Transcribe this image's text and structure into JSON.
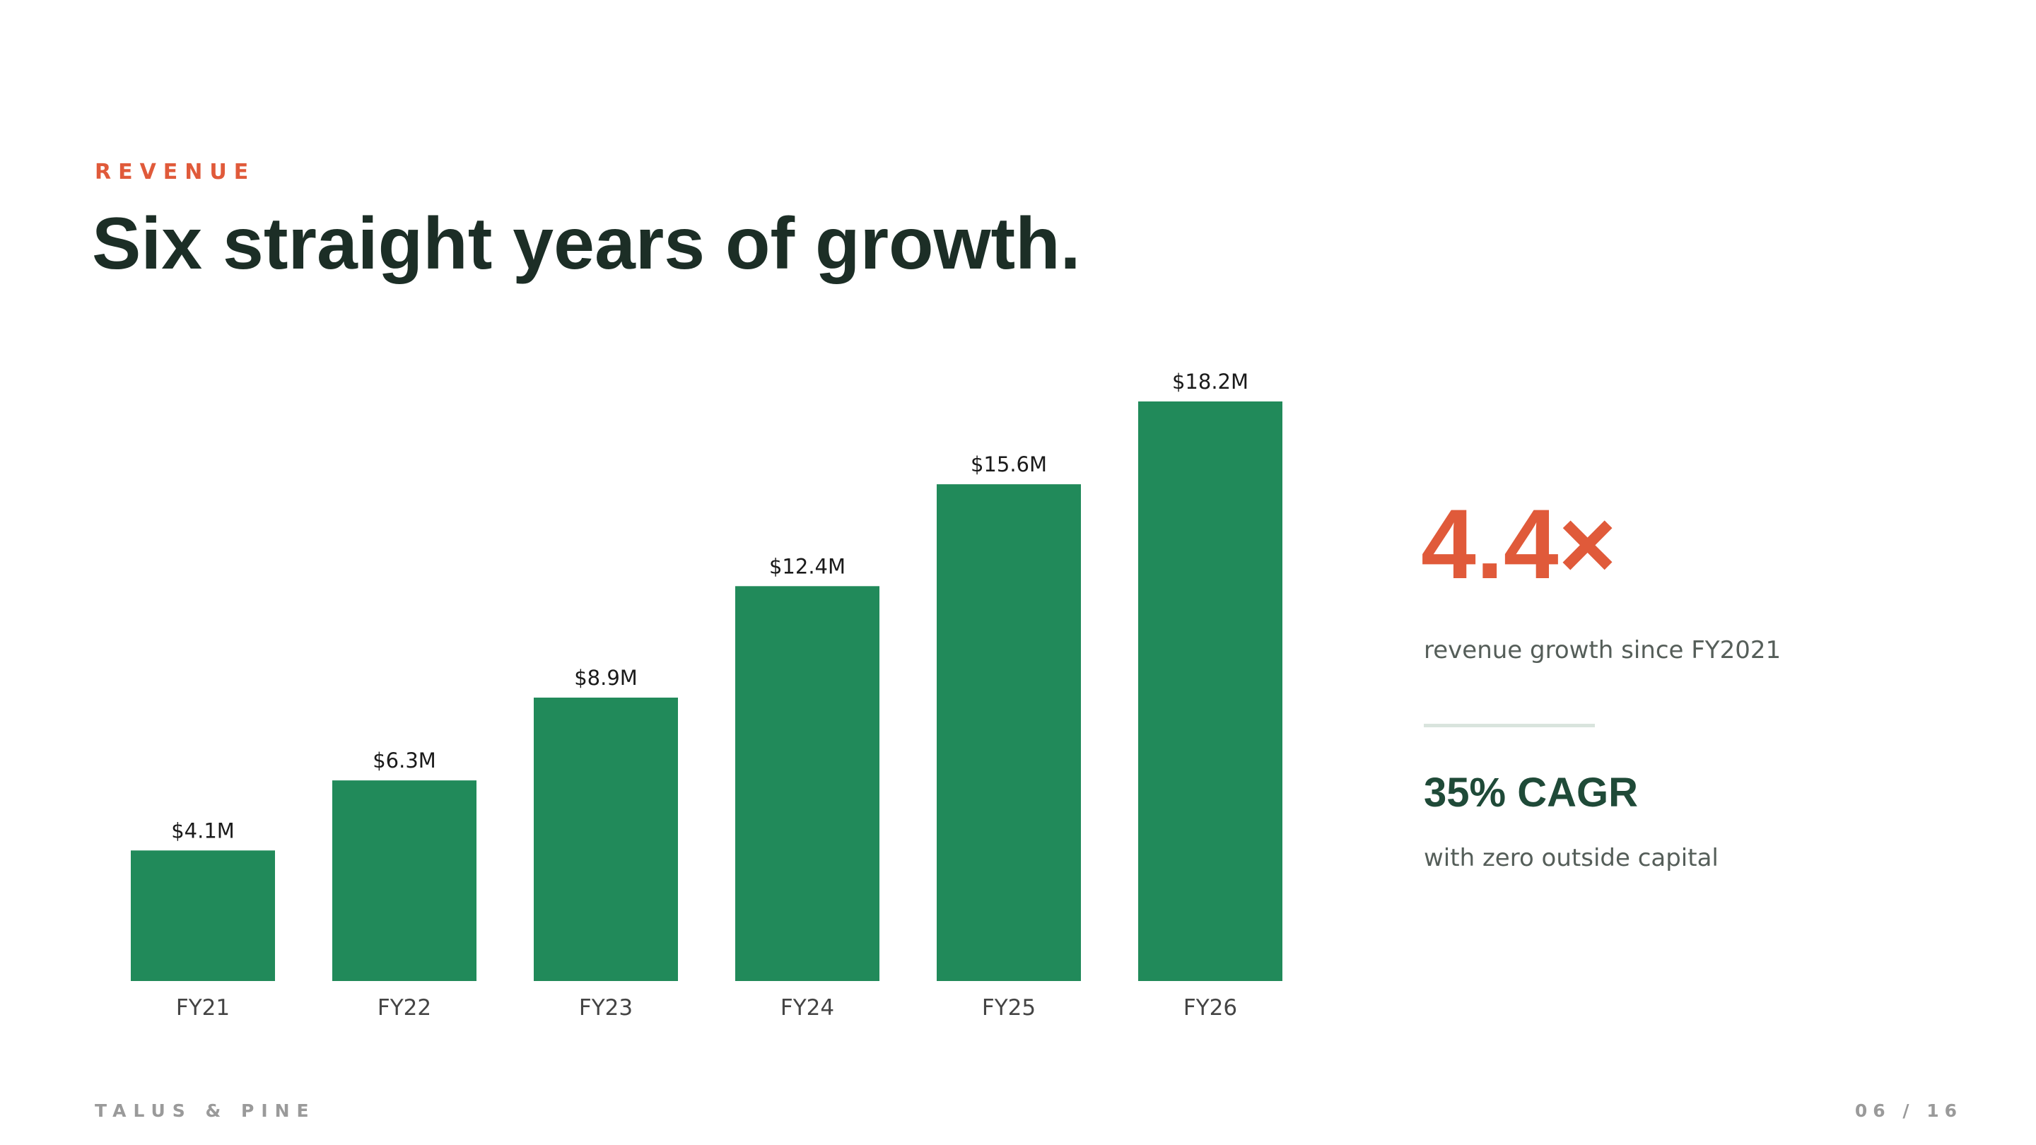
{
  "slide": {
    "eyebrow": "REVENUE",
    "title": "Six straight years of growth.",
    "footer_brand": "TALUS & PINE",
    "page_number": "06 / 16"
  },
  "stats": {
    "headline": "4.4×",
    "headline_desc": "revenue growth since FY2021",
    "secondary": "35% CAGR",
    "secondary_desc": "with zero outside capital"
  },
  "colors": {
    "accent": "#e05a3a",
    "bar": "#218a5a",
    "title": "#1c2e26",
    "secondary_stat": "#1f4a38",
    "body_text": "#555e59",
    "axis_text": "#444444",
    "label_text": "#1a1a1a",
    "footer_text": "#9a9a9a"
  },
  "chart_data": {
    "type": "bar",
    "categories": [
      "FY21",
      "FY22",
      "FY23",
      "FY24",
      "FY25",
      "FY26"
    ],
    "values": [
      4.1,
      6.3,
      8.9,
      12.4,
      15.6,
      18.2
    ],
    "data_labels": [
      "$4.1M",
      "$6.3M",
      "$8.9M",
      "$12.4M",
      "$15.6M",
      "$18.2M"
    ],
    "title": "",
    "xlabel": "",
    "ylabel": "",
    "ylim": [
      0,
      18.2
    ],
    "grid": false,
    "legend": "none"
  }
}
